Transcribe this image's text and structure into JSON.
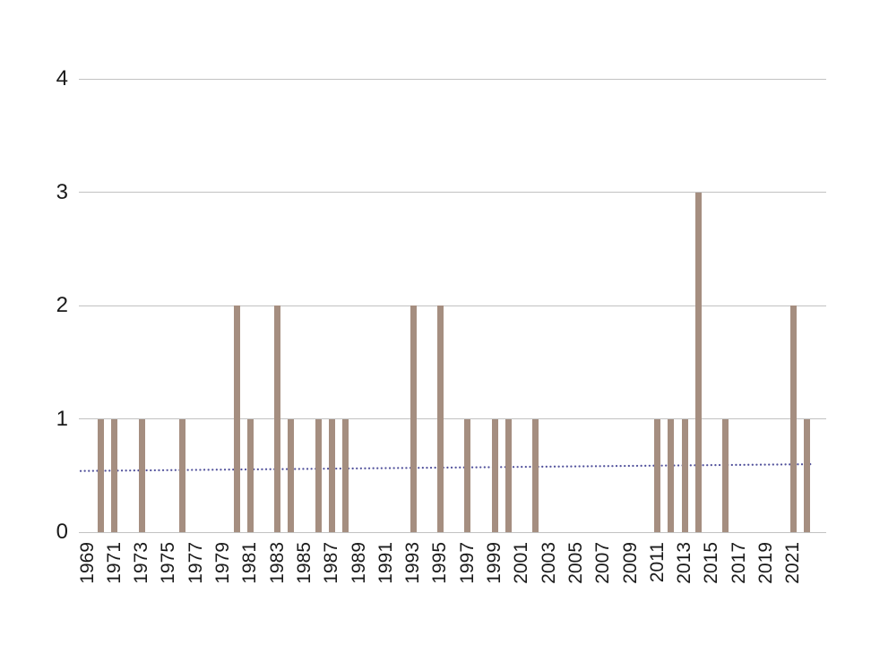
{
  "chart_data": {
    "type": "bar",
    "title": "",
    "xlabel": "",
    "ylabel": "",
    "x": [
      1969,
      1970,
      1971,
      1972,
      1973,
      1974,
      1975,
      1976,
      1977,
      1978,
      1979,
      1980,
      1981,
      1982,
      1983,
      1984,
      1985,
      1986,
      1987,
      1988,
      1989,
      1990,
      1991,
      1992,
      1993,
      1994,
      1995,
      1996,
      1997,
      1998,
      1999,
      2000,
      2001,
      2002,
      2003,
      2004,
      2005,
      2006,
      2007,
      2008,
      2009,
      2010,
      2011,
      2012,
      2013,
      2014,
      2015,
      2016,
      2017,
      2018,
      2019,
      2020,
      2021,
      2022
    ],
    "values": [
      0,
      1,
      1,
      0,
      1,
      0,
      0,
      1,
      0,
      0,
      0,
      2,
      1,
      0,
      2,
      1,
      0,
      1,
      1,
      1,
      0,
      0,
      0,
      0,
      2,
      0,
      2,
      0,
      1,
      0,
      1,
      1,
      0,
      1,
      0,
      0,
      0,
      0,
      0,
      0,
      0,
      0,
      1,
      1,
      1,
      3,
      0,
      1,
      0,
      0,
      0,
      0,
      2,
      1
    ],
    "x_tick_labels": [
      "1969",
      "1971",
      "1973",
      "1975",
      "1977",
      "1979",
      "1981",
      "1983",
      "1985",
      "1987",
      "1989",
      "1991",
      "1993",
      "1995",
      "1997",
      "1999",
      "2001",
      "2003",
      "2005",
      "2007",
      "2009",
      "2011",
      "2013",
      "2015",
      "2017",
      "2019",
      "2021"
    ],
    "y_tick_labels": [
      "0",
      "1",
      "2",
      "3",
      "4"
    ],
    "ylim": [
      0,
      4
    ],
    "grid": true,
    "legend_position": "none",
    "bar_color": "#a58e80",
    "grid_color": "#c2c2c2",
    "text_color": "#1a1a1a",
    "trend_line": {
      "style": "dotted",
      "color": "#51519b",
      "y_start": 0.54,
      "y_end": 0.6
    }
  }
}
